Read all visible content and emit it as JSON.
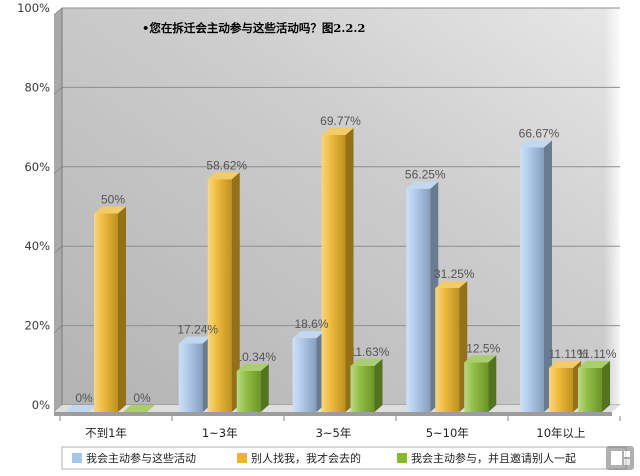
{
  "chart_data": {
    "type": "bar",
    "title": "•您在拆迁会主动参与这些活动吗？图2.2.2",
    "categories": [
      "不到1年",
      "1~3年",
      "3~5年",
      "5~10年",
      "10年以上"
    ],
    "series": [
      {
        "name": "我会主动参与这些活动",
        "color": "#a8c6ea",
        "values": [
          0,
          17.24,
          18.6,
          56.25,
          66.67
        ]
      },
      {
        "name": "别人找我，我才会去的",
        "color": "#eeb526",
        "values": [
          50,
          58.62,
          69.77,
          31.25,
          11.11
        ]
      },
      {
        "name": "我会主动参与，并且邀请别人一起",
        "color": "#86b930",
        "values": [
          0,
          10.34,
          11.63,
          12.5,
          11.11
        ]
      }
    ],
    "value_suffix": "%",
    "ylim": [
      0,
      100
    ],
    "yticks": [
      0,
      20,
      40,
      60,
      80,
      100
    ],
    "ytick_labels": [
      "0%",
      "20%",
      "40%",
      "60%",
      "80%",
      "100%"
    ],
    "grid": true,
    "legend_position": "bottom"
  },
  "icons": {
    "watermark": "watermark-logo-icon"
  }
}
